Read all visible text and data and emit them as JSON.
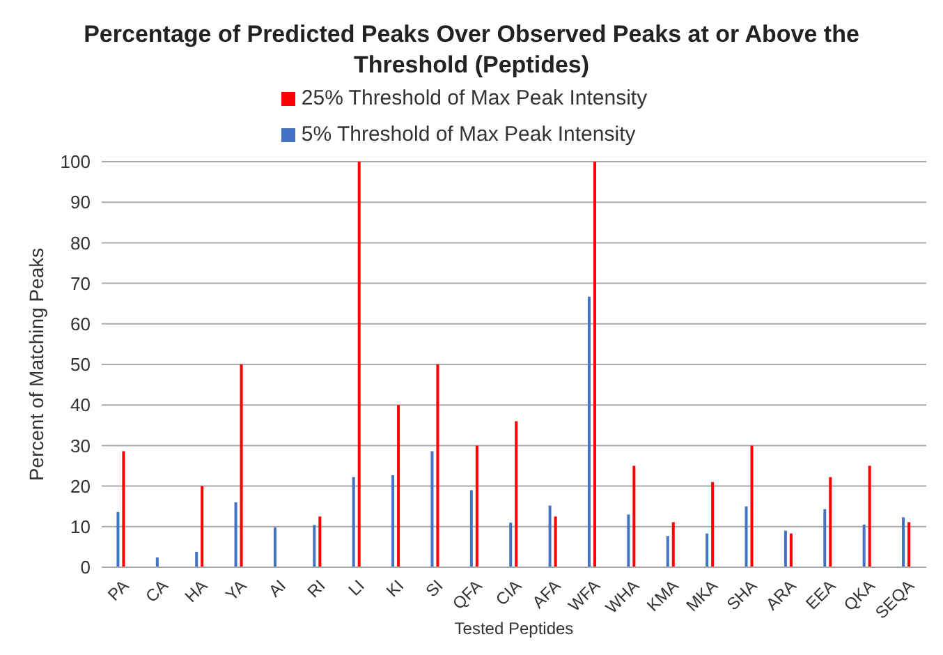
{
  "chart_data": {
    "type": "bar",
    "title": "Percentage of Predicted Peaks Over Observed Peaks at or Above the Threshold (Peptides)",
    "xlabel": "Tested Peptides",
    "ylabel": "Percent of Matching Peaks",
    "categories": [
      "PA",
      "CA",
      "HA",
      "YA",
      "AI",
      "RI",
      "LI",
      "KI",
      "SI",
      "QFA",
      "CIA",
      "AFA",
      "WFA",
      "WHA",
      "KMA",
      "MKA",
      "SHA",
      "ARA",
      "EEA",
      "QKA",
      "SEQA"
    ],
    "series": [
      {
        "name": "5% Threshold of Max Peak Intensity",
        "color": "#4472c4",
        "values": [
          13.6,
          2.4,
          3.8,
          16,
          9.8,
          10.4,
          22.2,
          22.7,
          28.6,
          19,
          11,
          15.2,
          66.7,
          13,
          7.7,
          8.3,
          15,
          9,
          14.3,
          10.5,
          12.3
        ]
      },
      {
        "name": "25% Threshold of Max Peak Intensity",
        "color": "#ff0000",
        "values": [
          28.6,
          0,
          20,
          50,
          0,
          12.5,
          100,
          40,
          50,
          30,
          36,
          12.5,
          100,
          25,
          11.1,
          21,
          30,
          8.3,
          22.2,
          25,
          11.1
        ]
      }
    ],
    "ylim": [
      0,
      100
    ],
    "yticks": [
      0,
      10,
      20,
      30,
      40,
      50,
      60,
      70,
      80,
      90,
      100
    ],
    "grid": "y",
    "legend": "top"
  }
}
